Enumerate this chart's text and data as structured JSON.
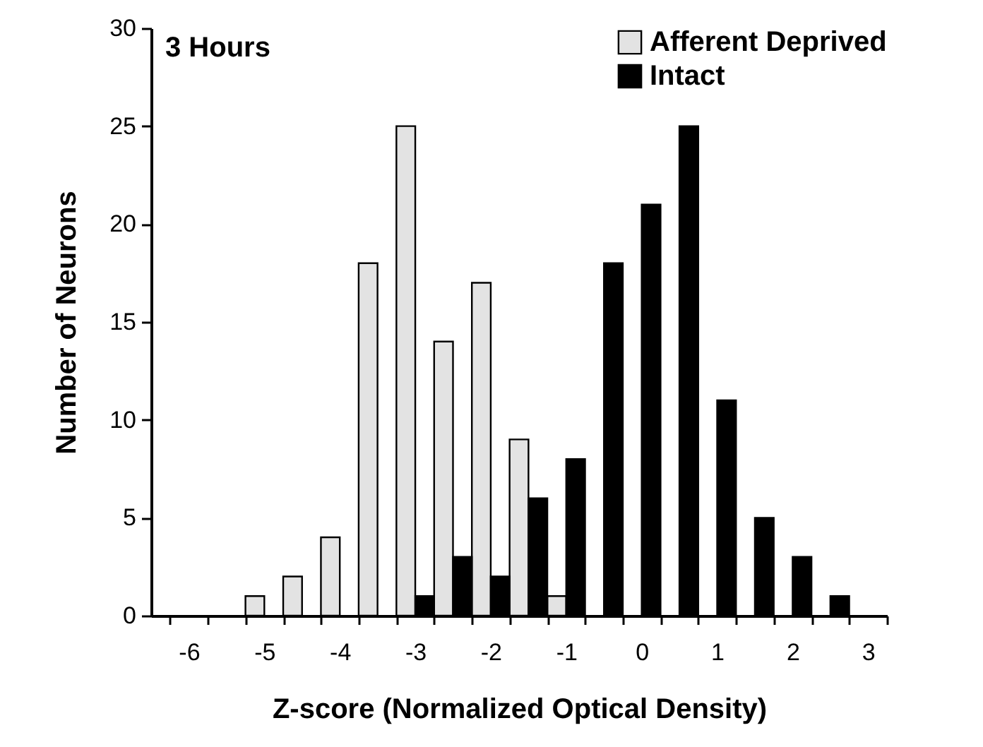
{
  "chart_data": {
    "type": "histogram",
    "annotations": [
      "3 Hours"
    ],
    "xlabel": "Z-score (Normalized Optical Density)",
    "ylabel": "Number of Neurons",
    "bins": [
      -6.25,
      -5.75,
      -5.25,
      -4.75,
      -4.25,
      -3.75,
      -3.25,
      -2.75,
      -2.25,
      -1.75,
      -1.25,
      -0.75,
      -0.25,
      0.25,
      0.75,
      1.25,
      1.75,
      2.25,
      2.75,
      3.25
    ],
    "series": [
      {
        "name": "Afferent Deprived",
        "color": "#e3e3e3",
        "values": [
          0,
          0,
          1,
          2,
          4,
          18,
          25,
          14,
          17,
          9,
          1,
          0,
          0,
          0,
          0,
          0,
          0,
          0,
          0
        ]
      },
      {
        "name": "Intact",
        "color": "#000000",
        "values": [
          0,
          0,
          0,
          0,
          0,
          0,
          1,
          3,
          2,
          6,
          8,
          18,
          21,
          25,
          11,
          5,
          3,
          1,
          0
        ]
      }
    ],
    "xlim": [
      -6.5,
      3.25
    ],
    "xticks": [
      {
        "value": -6.25,
        "label": null
      },
      {
        "value": -5.75,
        "label": null
      },
      {
        "value": -5.25,
        "label": null
      },
      {
        "value": -4.75,
        "label": null
      },
      {
        "value": -4.25,
        "label": null
      },
      {
        "value": -3.75,
        "label": null
      },
      {
        "value": -3.25,
        "label": null
      },
      {
        "value": -2.75,
        "label": null
      },
      {
        "value": -2.25,
        "label": null
      },
      {
        "value": -1.75,
        "label": null
      },
      {
        "value": -1.25,
        "label": null
      },
      {
        "value": -0.75,
        "label": null
      },
      {
        "value": -0.25,
        "label": null
      },
      {
        "value": 0.25,
        "label": null
      },
      {
        "value": 0.75,
        "label": null
      },
      {
        "value": 1.25,
        "label": null
      },
      {
        "value": 1.75,
        "label": null
      },
      {
        "value": 2.25,
        "label": null
      },
      {
        "value": 2.75,
        "label": null
      },
      {
        "value": 3.25,
        "label": null
      },
      -6,
      -5,
      -4,
      -3,
      -2,
      -1,
      0,
      1,
      2,
      3
    ],
    "ylim": [
      0,
      30
    ],
    "yticks": [
      0,
      5,
      10,
      15,
      20,
      25,
      30
    ],
    "grid": false,
    "legend": "top right"
  }
}
